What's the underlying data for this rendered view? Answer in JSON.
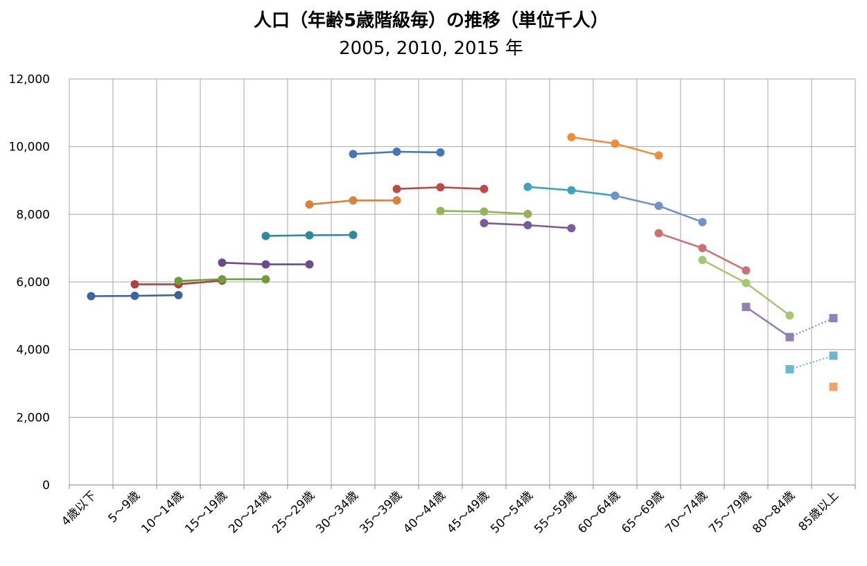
{
  "chart_data": {
    "type": "line",
    "title": "人口（年齢5歳階級毎）の推移（単位千人）",
    "subtitle": "2005, 2010, 2015 年",
    "xlabel": "",
    "ylabel": "",
    "ylim": [
      0,
      12000
    ],
    "yticks": [
      0,
      2000,
      4000,
      6000,
      8000,
      10000,
      12000
    ],
    "ytick_labels": [
      "0",
      "2,000",
      "4,000",
      "6,000",
      "8,000",
      "10,000",
      "12,000"
    ],
    "grid": true,
    "legend": "none",
    "categories": [
      "4歳以下",
      "5～9歳",
      "10～14歳",
      "15～19歳",
      "20～24歳",
      "25～29歳",
      "30～34歳",
      "35～39歳",
      "40～44歳",
      "45～49歳",
      "50～54歳",
      "55～59歳",
      "60～64歳",
      "65～69歳",
      "70～74歳",
      "75～79歳",
      "80～84歳",
      "85歳以上"
    ],
    "series": [
      {
        "color": "#3b64a0",
        "marker": "circle",
        "line": "solid",
        "points": [
          [
            0,
            5580
          ],
          [
            1,
            5590
          ],
          [
            2,
            5610
          ]
        ]
      },
      {
        "color": "#b0403c",
        "marker": "circle",
        "line": "solid",
        "points": [
          [
            1,
            5930
          ],
          [
            2,
            5930
          ],
          [
            3,
            6040
          ]
        ]
      },
      {
        "color": "#6d9d3c",
        "marker": "circle",
        "line": "solid",
        "points": [
          [
            2,
            6030
          ],
          [
            3,
            6080
          ],
          [
            4,
            6080
          ]
        ]
      },
      {
        "color": "#6a4c8c",
        "marker": "circle",
        "line": "solid",
        "points": [
          [
            3,
            6570
          ],
          [
            4,
            6520
          ],
          [
            5,
            6520
          ]
        ]
      },
      {
        "color": "#2e8aa0",
        "marker": "circle",
        "line": "solid",
        "points": [
          [
            4,
            7360
          ],
          [
            5,
            7380
          ],
          [
            6,
            7390
          ]
        ]
      },
      {
        "color": "#d9813a",
        "marker": "circle",
        "line": "solid",
        "points": [
          [
            5,
            8290
          ],
          [
            6,
            8410
          ],
          [
            7,
            8410
          ]
        ]
      },
      {
        "color": "#4477b8",
        "marker": "circle",
        "line": "solid",
        "points": [
          [
            6,
            9780
          ],
          [
            7,
            9850
          ],
          [
            8,
            9830
          ]
        ]
      },
      {
        "color": "#bd4a45",
        "marker": "circle",
        "line": "solid",
        "points": [
          [
            7,
            8750
          ],
          [
            8,
            8800
          ],
          [
            9,
            8750
          ]
        ]
      },
      {
        "color": "#92b655",
        "marker": "circle",
        "line": "solid",
        "points": [
          [
            8,
            8100
          ],
          [
            9,
            8080
          ],
          [
            10,
            8010
          ]
        ]
      },
      {
        "color": "#7a5c9e",
        "marker": "circle",
        "line": "solid",
        "points": [
          [
            9,
            7740
          ],
          [
            10,
            7680
          ],
          [
            11,
            7590
          ]
        ]
      },
      {
        "color": "#3fa3bd",
        "marker": "circle",
        "line": "solid",
        "points": [
          [
            10,
            8810
          ],
          [
            11,
            8710
          ],
          [
            12,
            8550
          ]
        ]
      },
      {
        "color": "#ea8f3c",
        "marker": "circle",
        "line": "solid",
        "points": [
          [
            11,
            10280
          ],
          [
            12,
            10090
          ],
          [
            13,
            9740
          ]
        ]
      },
      {
        "color": "#7092c6",
        "marker": "circle",
        "line": "solid",
        "points": [
          [
            12,
            8550
          ],
          [
            13,
            8250
          ],
          [
            14,
            7770
          ]
        ]
      },
      {
        "color": "#cc7272",
        "marker": "circle",
        "line": "solid",
        "points": [
          [
            13,
            7440
          ],
          [
            14,
            7000
          ],
          [
            15,
            6340
          ]
        ]
      },
      {
        "color": "#a9c772",
        "marker": "circle",
        "line": "solid",
        "points": [
          [
            14,
            6650
          ],
          [
            15,
            5970
          ],
          [
            16,
            5010
          ]
        ]
      },
      {
        "color": "#9380b5",
        "marker": "square",
        "line": "solid",
        "points": [
          [
            15,
            5260
          ],
          [
            16,
            4370
          ]
        ]
      },
      {
        "color": "#9380b5",
        "marker": "square",
        "line": "dotted",
        "points": [
          [
            16,
            4370
          ],
          [
            17,
            4930
          ]
        ]
      },
      {
        "color": "#6cb8cf",
        "marker": "square",
        "line": "dotted",
        "points": [
          [
            16,
            3420
          ],
          [
            17,
            3820
          ]
        ]
      },
      {
        "color": "#f1a36d",
        "marker": "square",
        "line": "none",
        "points": [
          [
            17,
            2900
          ]
        ]
      }
    ]
  }
}
